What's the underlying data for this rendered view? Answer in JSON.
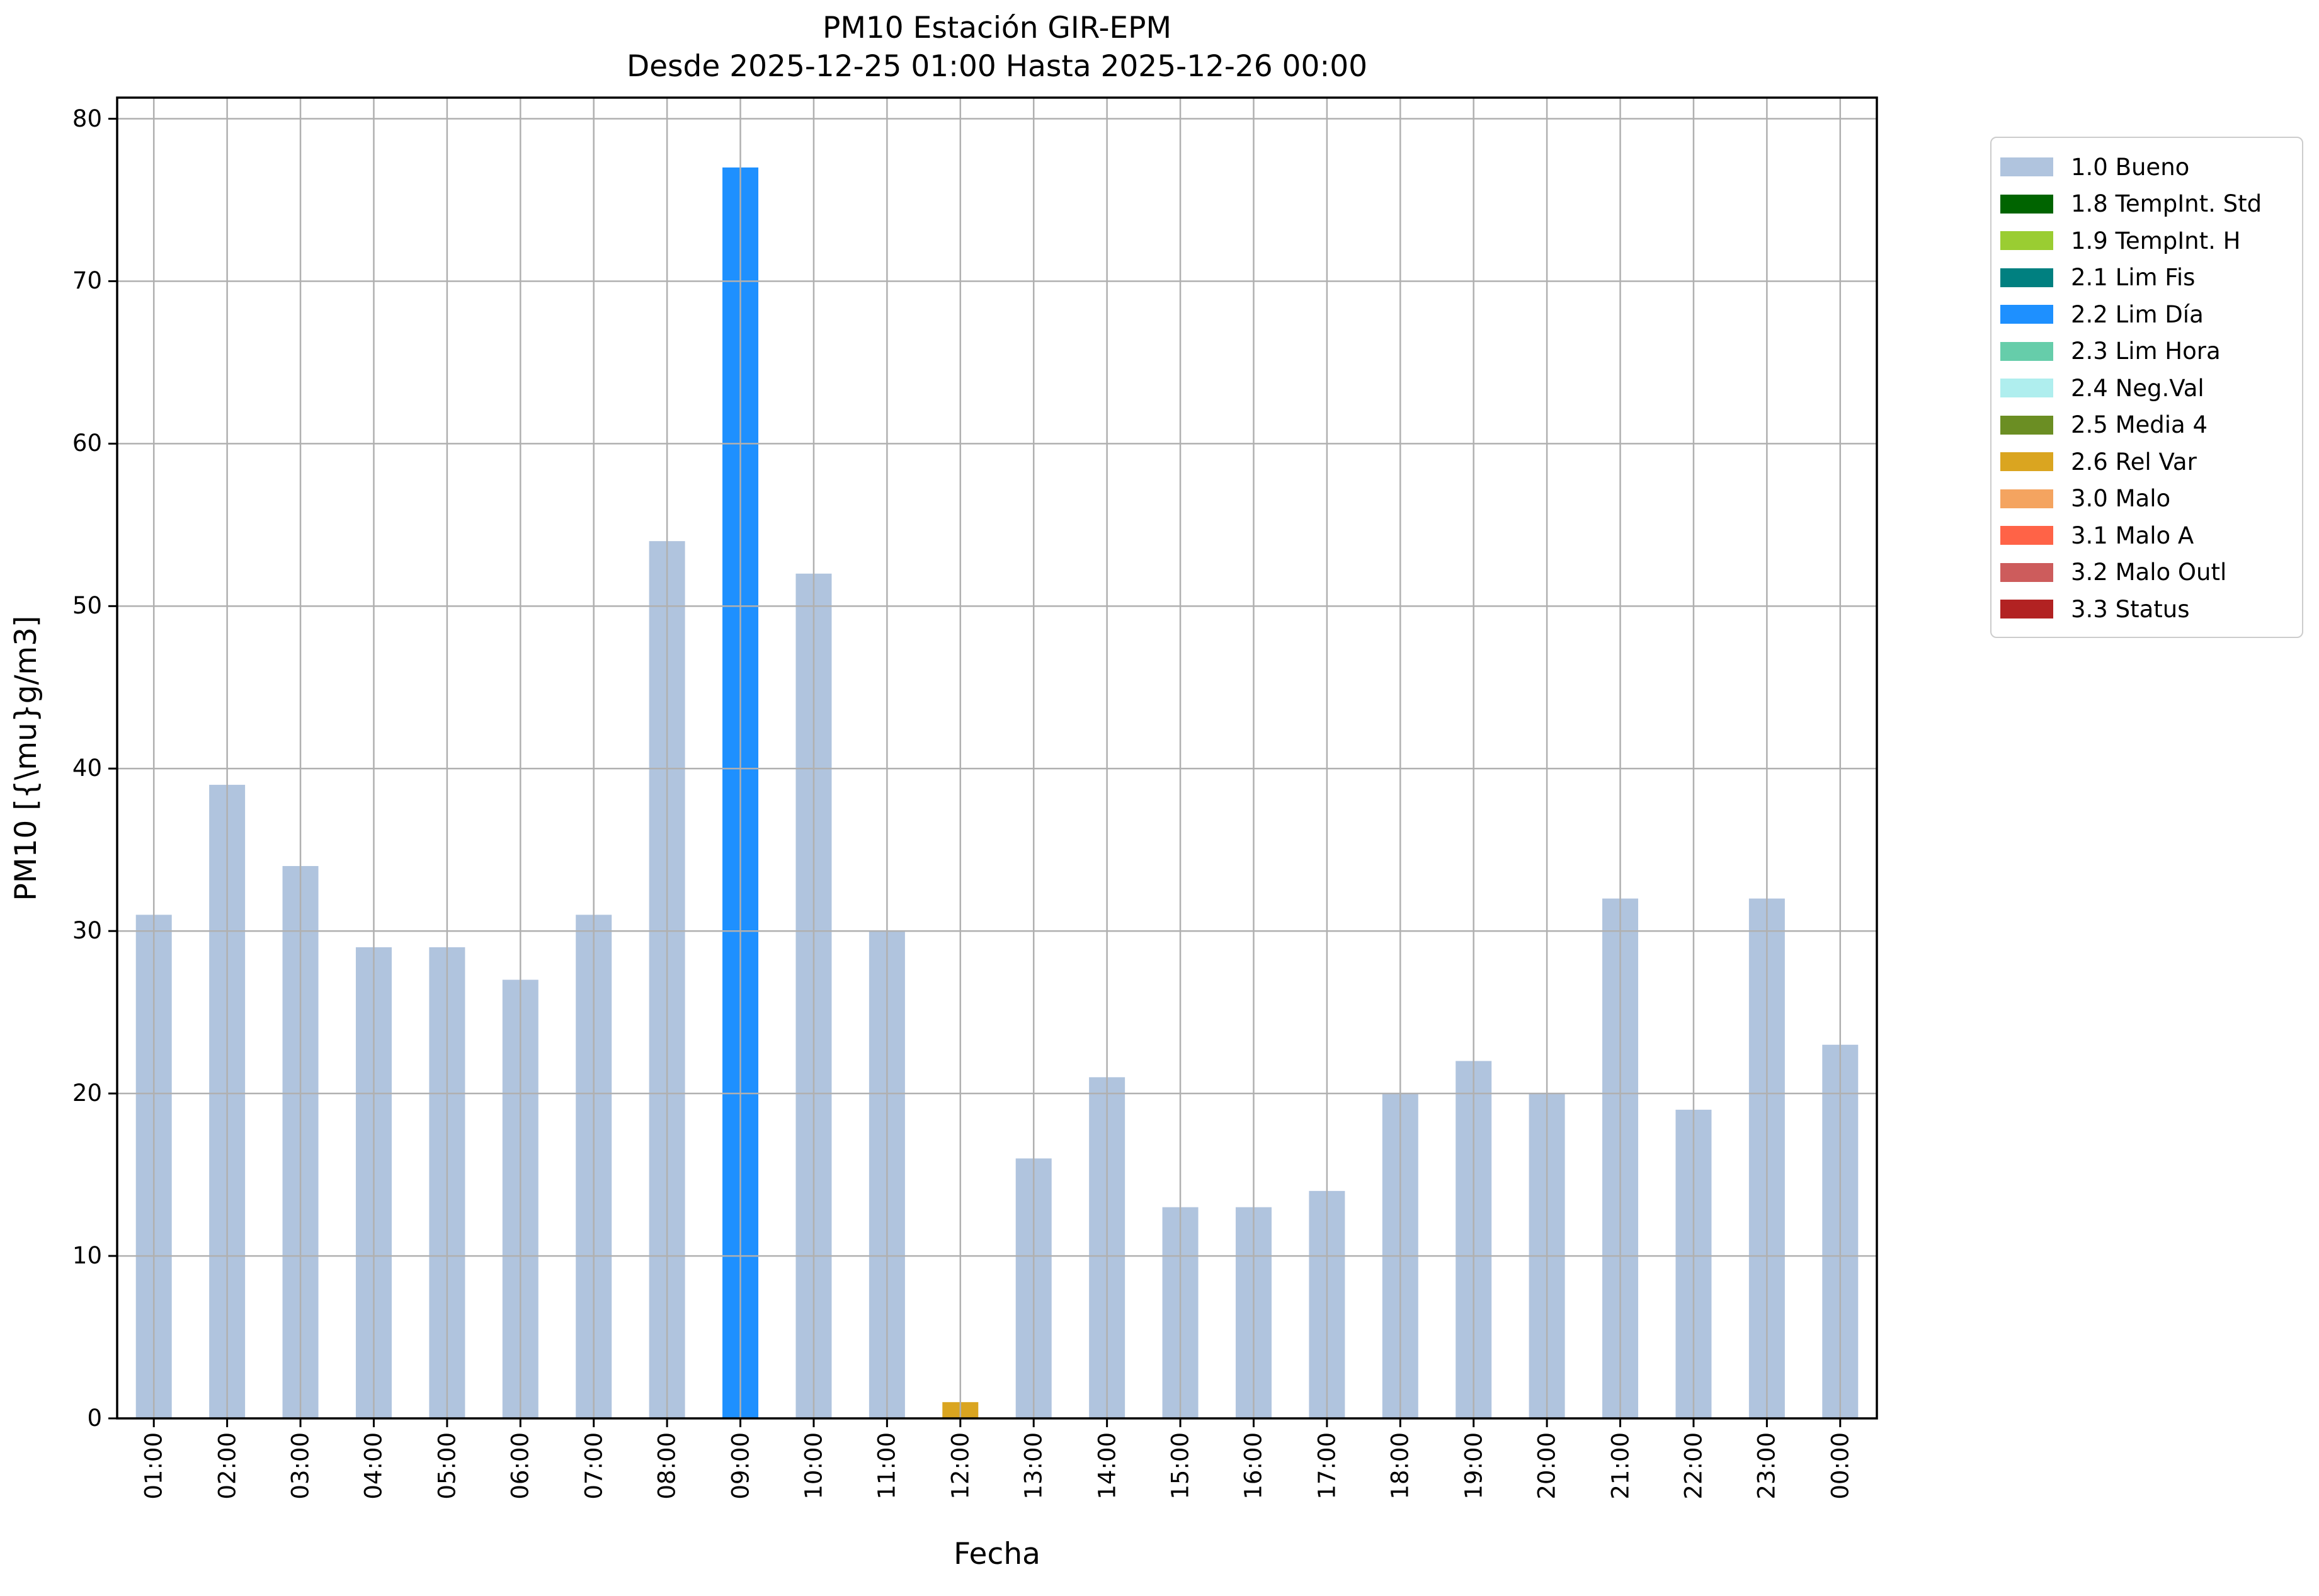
{
  "chart_data": {
    "type": "bar",
    "title": "PM10 Estación GIR-EPM",
    "subtitle": "Desde 2025-12-25 01:00 Hasta 2025-12-26 00:00",
    "xlabel": "Fecha",
    "ylabel": "PM10 [{\\mu}g/m3]",
    "categories": [
      "01:00",
      "02:00",
      "03:00",
      "04:00",
      "05:00",
      "06:00",
      "07:00",
      "08:00",
      "09:00",
      "10:00",
      "11:00",
      "12:00",
      "13:00",
      "14:00",
      "15:00",
      "16:00",
      "17:00",
      "18:00",
      "19:00",
      "20:00",
      "21:00",
      "22:00",
      "23:00",
      "00:00"
    ],
    "values": [
      31,
      39,
      34,
      29,
      29,
      27,
      31,
      54,
      77,
      52,
      30,
      1,
      16,
      21,
      13,
      13,
      14,
      20,
      22,
      20,
      32,
      19,
      32,
      23
    ],
    "bar_flags": [
      "1.0 Bueno",
      "1.0 Bueno",
      "1.0 Bueno",
      "1.0 Bueno",
      "1.0 Bueno",
      "1.0 Bueno",
      "1.0 Bueno",
      "1.0 Bueno",
      "2.2 Lim Día",
      "1.0 Bueno",
      "1.0 Bueno",
      "2.6 Rel Var",
      "1.0 Bueno",
      "1.0 Bueno",
      "1.0 Bueno",
      "1.0 Bueno",
      "1.0 Bueno",
      "1.0 Bueno",
      "1.0 Bueno",
      "1.0 Bueno",
      "1.0 Bueno",
      "1.0 Bueno",
      "1.0 Bueno",
      "1.0 Bueno"
    ],
    "yticks": [
      0,
      10,
      20,
      30,
      40,
      50,
      60,
      70,
      80
    ],
    "ylim": [
      0,
      81.3
    ],
    "grid": true,
    "legend_position": "outside upper right",
    "legend": [
      {
        "label": "1.0 Bueno",
        "color": "#b0c4de"
      },
      {
        "label": "1.8 TempInt. Std",
        "color": "#006400"
      },
      {
        "label": "1.9 TempInt. H",
        "color": "#9acd32"
      },
      {
        "label": "2.1 Lim Fis",
        "color": "#008080"
      },
      {
        "label": "2.2 Lim Día",
        "color": "#1e90ff"
      },
      {
        "label": "2.3 Lim Hora",
        "color": "#66cdaa"
      },
      {
        "label": "2.4 Neg.Val",
        "color": "#afeeee"
      },
      {
        "label": "2.5 Media 4",
        "color": "#6b8e23"
      },
      {
        "label": "2.6 Rel Var",
        "color": "#daa520"
      },
      {
        "label": "3.0 Malo",
        "color": "#f4a460"
      },
      {
        "label": "3.1 Malo A",
        "color": "#ff6347"
      },
      {
        "label": "3.2 Malo Outl",
        "color": "#cd5c5c"
      },
      {
        "label": "3.3 Status",
        "color": "#b22222"
      }
    ],
    "colors": {
      "grid": "#b0b0b0",
      "spine": "#000000",
      "background": "#ffffff"
    }
  }
}
